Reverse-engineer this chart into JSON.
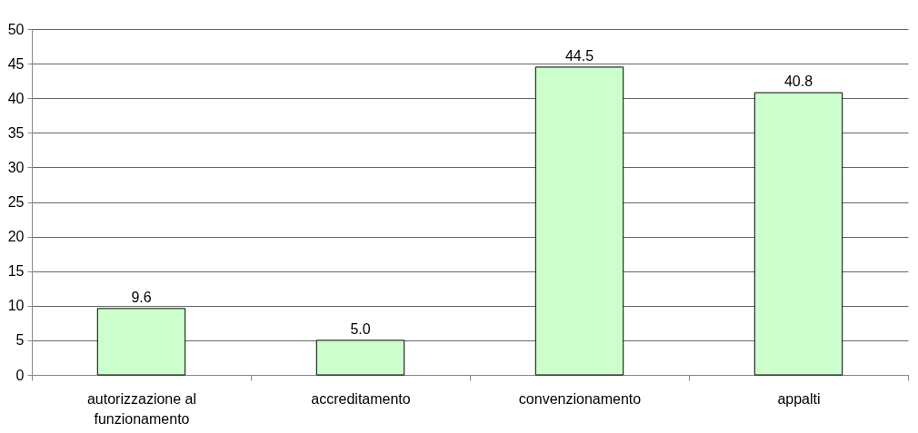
{
  "chart_data": {
    "type": "bar",
    "categories": [
      "autorizzazione al funzionamento",
      "accreditamento",
      "convenzionamento",
      "appalti"
    ],
    "values": [
      9.6,
      5.0,
      44.5,
      40.8
    ],
    "value_labels": [
      "9.6",
      "5.0",
      "44.5",
      "40.8"
    ],
    "color": "#ccffcc",
    "ylim": [
      0,
      50
    ],
    "yticks": [
      0,
      5,
      10,
      15,
      20,
      25,
      30,
      35,
      40,
      45,
      50
    ],
    "grid": "y"
  }
}
